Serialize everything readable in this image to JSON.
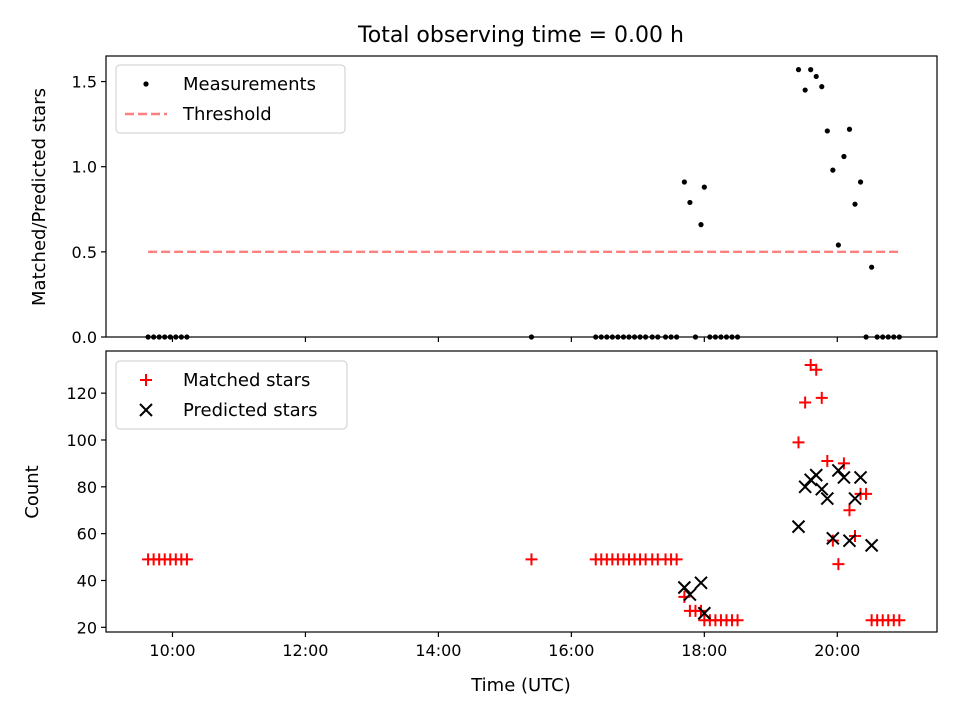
{
  "figure": {
    "title": "Total observing time = 0.00 h"
  },
  "colors": {
    "measurement": "#000000",
    "threshold": "#ff7f7f",
    "matched": "#ff0000",
    "predicted": "#000000"
  },
  "chart_data": [
    {
      "type": "scatter",
      "title": "Total observing time = 0.00 h",
      "xlabel": "",
      "ylabel": "Matched/Predicted stars",
      "xlim": [
        "09:00",
        "21:30"
      ],
      "ylim": [
        0,
        1.65
      ],
      "xticks": [
        "10:00",
        "12:00",
        "14:00",
        "16:00",
        "18:00",
        "20:00"
      ],
      "yticks": [
        "0.0",
        "0.5",
        "1.0",
        "1.5"
      ],
      "x_tick_labels_shown": false,
      "legend": {
        "position": "top-left",
        "entries": [
          "Measurements",
          "Threshold"
        ]
      },
      "series": [
        {
          "name": "Measurements",
          "style": "dots",
          "points": [
            [
              "09:38",
              0
            ],
            [
              "09:43",
              0
            ],
            [
              "09:48",
              0
            ],
            [
              "09:53",
              0
            ],
            [
              "09:58",
              0
            ],
            [
              "10:03",
              0
            ],
            [
              "10:08",
              0
            ],
            [
              "10:13",
              0
            ],
            [
              "15:24",
              0
            ],
            [
              "16:22",
              0
            ],
            [
              "16:27",
              0
            ],
            [
              "16:32",
              0
            ],
            [
              "16:37",
              0
            ],
            [
              "16:42",
              0
            ],
            [
              "16:47",
              0
            ],
            [
              "16:52",
              0
            ],
            [
              "16:57",
              0
            ],
            [
              "17:02",
              0
            ],
            [
              "17:07",
              0
            ],
            [
              "17:13",
              0
            ],
            [
              "17:18",
              0
            ],
            [
              "17:25",
              0
            ],
            [
              "17:30",
              0
            ],
            [
              "17:35",
              0
            ],
            [
              "17:42",
              0.91
            ],
            [
              "17:47",
              0.79
            ],
            [
              "17:52",
              0
            ],
            [
              "17:57",
              0.66
            ],
            [
              "18:00",
              0.88
            ],
            [
              "18:05",
              0
            ],
            [
              "18:10",
              0
            ],
            [
              "18:15",
              0
            ],
            [
              "18:20",
              0
            ],
            [
              "18:25",
              0
            ],
            [
              "18:30",
              0
            ],
            [
              "19:25",
              1.57
            ],
            [
              "19:31",
              1.45
            ],
            [
              "19:36",
              1.57
            ],
            [
              "19:41",
              1.53
            ],
            [
              "19:46",
              1.47
            ],
            [
              "19:51",
              1.21
            ],
            [
              "19:56",
              0.98
            ],
            [
              "20:01",
              0.54
            ],
            [
              "20:06",
              1.06
            ],
            [
              "20:11",
              1.22
            ],
            [
              "20:16",
              0.78
            ],
            [
              "20:21",
              0.91
            ],
            [
              "20:26",
              0
            ],
            [
              "20:31",
              0.41
            ],
            [
              "20:36",
              0
            ],
            [
              "20:41",
              0
            ],
            [
              "20:46",
              0
            ],
            [
              "20:51",
              0
            ],
            [
              "20:56",
              0
            ]
          ]
        },
        {
          "name": "Threshold",
          "style": "dashed-line",
          "points": [
            [
              "09:38",
              0.5
            ],
            [
              "20:56",
              0.5
            ]
          ]
        }
      ]
    },
    {
      "type": "scatter",
      "title": "",
      "xlabel": "Time (UTC)",
      "ylabel": "Count",
      "xlim": [
        "09:00",
        "21:30"
      ],
      "ylim": [
        18,
        138
      ],
      "xticks": [
        "10:00",
        "12:00",
        "14:00",
        "16:00",
        "18:00",
        "20:00"
      ],
      "yticks": [
        "20",
        "40",
        "60",
        "80",
        "100",
        "120"
      ],
      "legend": {
        "position": "top-left",
        "entries": [
          "Matched stars",
          "Predicted stars"
        ]
      },
      "series": [
        {
          "name": "Matched stars",
          "marker": "plus",
          "points": [
            [
              "09:38",
              49
            ],
            [
              "09:43",
              49
            ],
            [
              "09:48",
              49
            ],
            [
              "09:53",
              49
            ],
            [
              "09:58",
              49
            ],
            [
              "10:03",
              49
            ],
            [
              "10:08",
              49
            ],
            [
              "10:13",
              49
            ],
            [
              "15:24",
              49
            ],
            [
              "16:22",
              49
            ],
            [
              "16:27",
              49
            ],
            [
              "16:32",
              49
            ],
            [
              "16:37",
              49
            ],
            [
              "16:42",
              49
            ],
            [
              "16:47",
              49
            ],
            [
              "16:52",
              49
            ],
            [
              "16:57",
              49
            ],
            [
              "17:02",
              49
            ],
            [
              "17:07",
              49
            ],
            [
              "17:13",
              49
            ],
            [
              "17:18",
              49
            ],
            [
              "17:25",
              49
            ],
            [
              "17:30",
              49
            ],
            [
              "17:35",
              49
            ],
            [
              "17:42",
              33
            ],
            [
              "17:47",
              27
            ],
            [
              "17:52",
              27
            ],
            [
              "17:57",
              27
            ],
            [
              "18:00",
              23
            ],
            [
              "18:05",
              23
            ],
            [
              "18:10",
              23
            ],
            [
              "18:15",
              23
            ],
            [
              "18:20",
              23
            ],
            [
              "18:25",
              23
            ],
            [
              "18:30",
              23
            ],
            [
              "19:25",
              99
            ],
            [
              "19:31",
              116
            ],
            [
              "19:36",
              132
            ],
            [
              "19:41",
              130
            ],
            [
              "19:46",
              118
            ],
            [
              "19:51",
              91
            ],
            [
              "19:56",
              57
            ],
            [
              "20:01",
              47
            ],
            [
              "20:06",
              90
            ],
            [
              "20:11",
              70
            ],
            [
              "20:16",
              59
            ],
            [
              "20:21",
              77
            ],
            [
              "20:26",
              77
            ],
            [
              "20:31",
              23
            ],
            [
              "20:36",
              23
            ],
            [
              "20:41",
              23
            ],
            [
              "20:46",
              23
            ],
            [
              "20:51",
              23
            ],
            [
              "20:56",
              23
            ]
          ]
        },
        {
          "name": "Predicted stars",
          "marker": "x",
          "points": [
            [
              "17:42",
              37
            ],
            [
              "17:47",
              34
            ],
            [
              "17:57",
              39
            ],
            [
              "18:00",
              26
            ],
            [
              "19:25",
              63
            ],
            [
              "19:31",
              80
            ],
            [
              "19:36",
              83
            ],
            [
              "19:41",
              85
            ],
            [
              "19:46",
              79
            ],
            [
              "19:51",
              75
            ],
            [
              "19:56",
              58
            ],
            [
              "20:01",
              87
            ],
            [
              "20:06",
              84
            ],
            [
              "20:11",
              57
            ],
            [
              "20:16",
              75
            ],
            [
              "20:21",
              84
            ],
            [
              "20:31",
              55
            ]
          ]
        }
      ]
    }
  ]
}
